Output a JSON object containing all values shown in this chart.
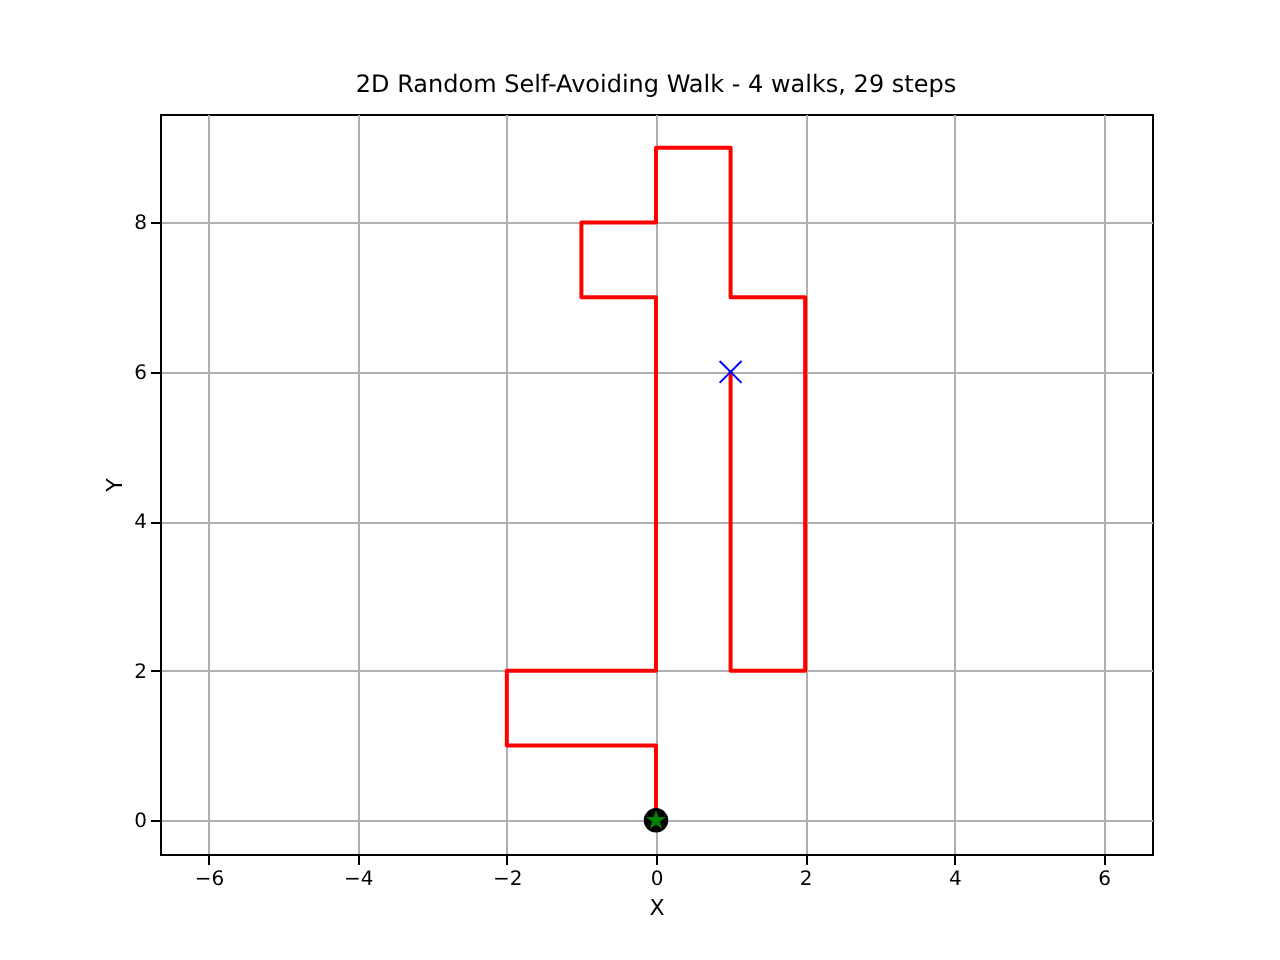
{
  "chart_data": {
    "type": "line",
    "title": "2D Random Self-Avoiding Walk - 4 walks, 29 steps",
    "xlabel": "X",
    "ylabel": "Y",
    "series": [
      {
        "color": "#ff0000",
        "x": [
          0,
          0,
          -2,
          -2,
          0,
          0,
          -1,
          -1,
          0,
          0,
          1,
          1,
          2,
          2,
          1,
          1
        ],
        "values": [
          0,
          1,
          1,
          2,
          2,
          7,
          7,
          8,
          8,
          9,
          9,
          7,
          7,
          2,
          2,
          6
        ]
      },
      {
        "type": "scatter",
        "marker": "circle",
        "color": "#000000",
        "x": [
          0
        ],
        "values": [
          0
        ]
      },
      {
        "type": "scatter",
        "marker": "star",
        "color": "#008000",
        "x": [
          0
        ],
        "values": [
          0
        ]
      },
      {
        "type": "scatter",
        "marker": "cross",
        "color": "#0000ff",
        "x": [
          1
        ],
        "values": [
          6
        ]
      }
    ],
    "xlim": [
      -6.65,
      6.65
    ],
    "xticks": [
      -6,
      -4,
      -2,
      0,
      2,
      4,
      6
    ],
    "ylim": [
      -0.45,
      9.45
    ],
    "yticks": [
      0,
      2,
      4,
      6,
      8
    ],
    "grid": true
  }
}
